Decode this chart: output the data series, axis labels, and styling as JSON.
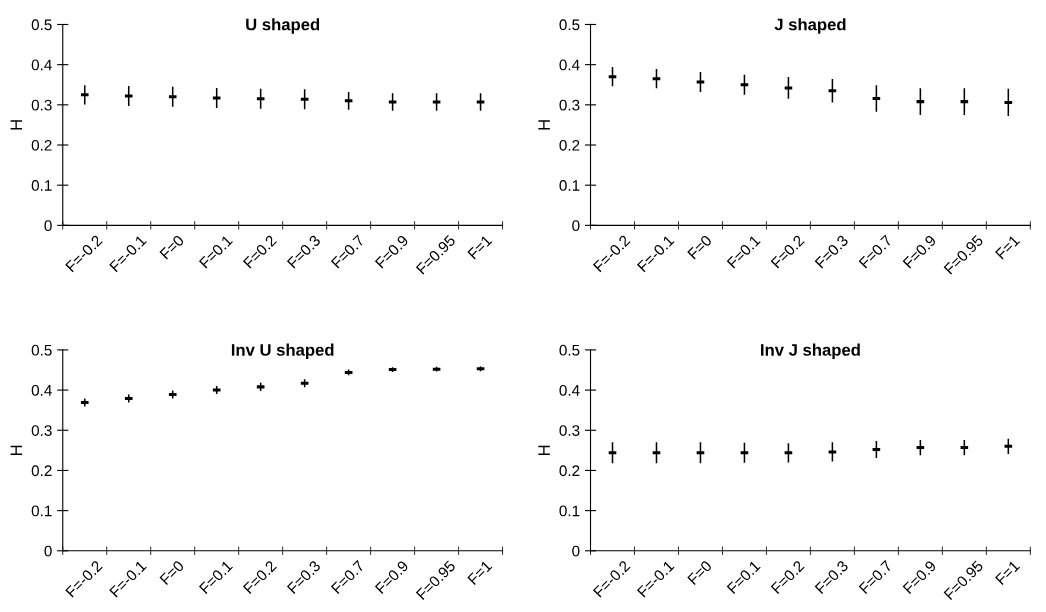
{
  "chart_data": [
    {
      "type": "scatter",
      "title": "U shaped",
      "ylabel": "H",
      "categories": [
        "F=-0.2",
        "F=-0.1",
        "F=0",
        "F=0.1",
        "F=0.2",
        "F=0.3",
        "F=0.7",
        "F=0.9",
        "F=0.95",
        "F=1"
      ],
      "ylim": [
        0,
        0.5
      ],
      "yticks": [
        0,
        0.1,
        0.2,
        0.3,
        0.4,
        0.5
      ],
      "grid": false,
      "legend": false,
      "series": [
        {
          "color": "#000000",
          "values": [
            0.325,
            0.322,
            0.32,
            0.317,
            0.315,
            0.314,
            0.31,
            0.307,
            0.307,
            0.307
          ],
          "errors": [
            0.024,
            0.025,
            0.025,
            0.025,
            0.025,
            0.025,
            0.022,
            0.022,
            0.022,
            0.022
          ]
        }
      ]
    },
    {
      "type": "scatter",
      "title": "J shaped",
      "ylabel": "H",
      "categories": [
        "F=-0.2",
        "F=-0.1",
        "F=0",
        "F=0.1",
        "F=0.2",
        "F=0.3",
        "F=0.7",
        "F=0.9",
        "F=0.95",
        "F=1"
      ],
      "ylim": [
        0,
        0.5
      ],
      "yticks": [
        0,
        0.1,
        0.2,
        0.3,
        0.4,
        0.5
      ],
      "grid": false,
      "legend": false,
      "series": [
        {
          "color": "#000000",
          "values": [
            0.37,
            0.365,
            0.357,
            0.35,
            0.342,
            0.335,
            0.316,
            0.308,
            0.308,
            0.306
          ],
          "errors": [
            0.024,
            0.024,
            0.025,
            0.025,
            0.027,
            0.029,
            0.033,
            0.033,
            0.033,
            0.034
          ]
        }
      ]
    },
    {
      "type": "scatter",
      "title": "Inv U shaped",
      "ylabel": "H",
      "categories": [
        "F=-0.2",
        "F=-0.1",
        "F=0",
        "F=0.1",
        "F=0.2",
        "F=0.3",
        "F=0.7",
        "F=0.9",
        "F=0.95",
        "F=1"
      ],
      "ylim": [
        0,
        0.5
      ],
      "yticks": [
        0,
        0.1,
        0.2,
        0.3,
        0.4,
        0.5
      ],
      "grid": false,
      "legend": false,
      "series": [
        {
          "color": "#000000",
          "values": [
            0.369,
            0.379,
            0.389,
            0.4,
            0.408,
            0.417,
            0.444,
            0.451,
            0.452,
            0.453
          ],
          "errors": [
            0.01,
            0.01,
            0.01,
            0.01,
            0.01,
            0.01,
            0.007,
            0.006,
            0.006,
            0.006
          ]
        }
      ]
    },
    {
      "type": "scatter",
      "title": "Inv J shaped",
      "ylabel": "H",
      "categories": [
        "F=-0.2",
        "F=-0.1",
        "F=0",
        "F=0.1",
        "F=0.2",
        "F=0.3",
        "F=0.7",
        "F=0.9",
        "F=0.95",
        "F=1"
      ],
      "ylim": [
        0,
        0.5
      ],
      "yticks": [
        0,
        0.1,
        0.2,
        0.3,
        0.4,
        0.5
      ],
      "grid": false,
      "legend": false,
      "series": [
        {
          "color": "#000000",
          "values": [
            0.244,
            0.244,
            0.244,
            0.244,
            0.244,
            0.246,
            0.252,
            0.257,
            0.257,
            0.26
          ],
          "errors": [
            0.026,
            0.026,
            0.026,
            0.025,
            0.024,
            0.024,
            0.021,
            0.019,
            0.019,
            0.019
          ]
        }
      ]
    }
  ]
}
